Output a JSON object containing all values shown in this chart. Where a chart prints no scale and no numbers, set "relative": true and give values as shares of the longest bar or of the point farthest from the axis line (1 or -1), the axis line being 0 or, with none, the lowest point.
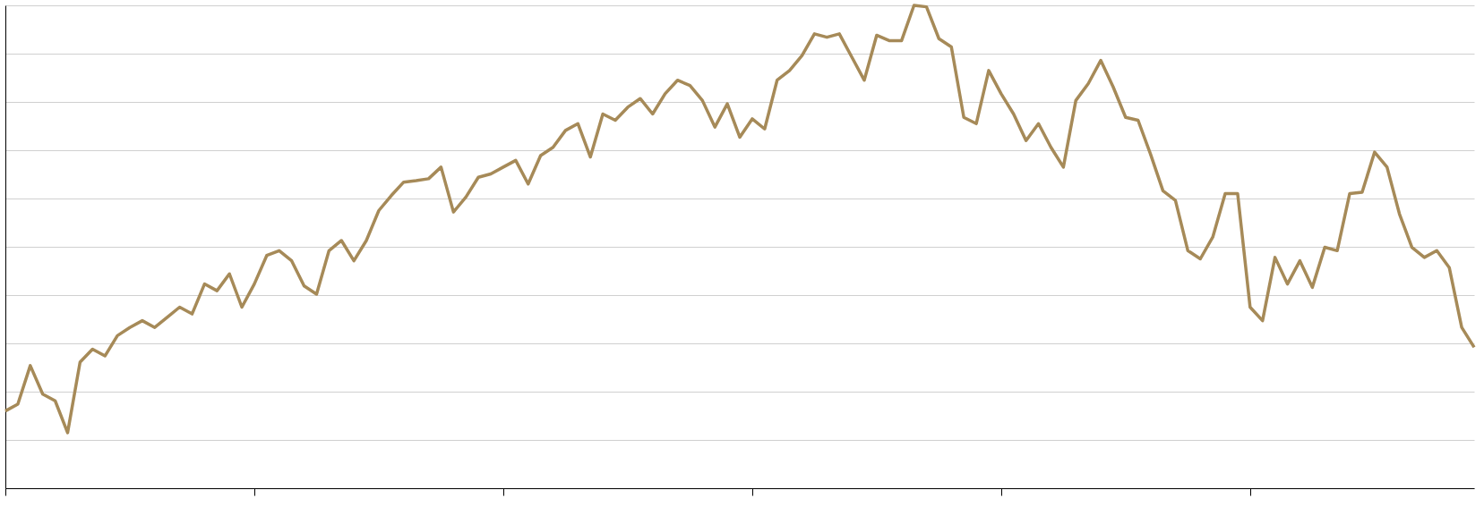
{
  "chart_data": {
    "type": "line",
    "relative": true,
    "grid": "y",
    "line_style": "solid",
    "marker": "none",
    "categories": [
      null,
      null,
      null,
      null,
      null,
      null,
      null,
      null,
      null,
      null,
      null,
      null,
      null,
      null,
      null,
      null,
      null,
      null,
      null,
      null,
      null,
      null,
      null,
      null,
      null,
      null,
      null,
      null,
      null,
      null,
      null,
      null,
      null,
      null,
      null,
      null,
      null,
      null,
      null,
      null,
      null,
      null,
      null,
      null,
      null,
      null,
      null,
      null,
      null,
      null,
      null,
      null,
      null,
      null,
      null,
      null,
      null,
      null,
      null,
      null,
      null,
      null,
      null,
      null,
      null,
      null,
      null,
      null,
      null,
      null,
      null,
      null,
      null,
      null,
      null,
      null,
      null,
      null,
      null,
      null,
      null,
      null,
      null,
      null,
      null,
      null,
      null,
      null,
      null,
      null,
      null,
      null,
      null,
      null,
      null,
      null,
      null,
      null,
      null,
      null,
      null,
      null,
      null,
      null,
      null,
      null,
      null,
      null,
      null,
      null,
      null,
      null,
      null,
      null,
      null,
      null,
      null,
      null,
      null
    ],
    "series": [
      {
        "color": "#a68a58",
        "values": [
          0.16,
          0.174,
          0.254,
          0.195,
          0.181,
          0.115,
          0.261,
          0.288,
          0.274,
          0.316,
          0.333,
          0.347,
          0.333,
          0.354,
          0.375,
          0.361,
          0.423,
          0.409,
          0.444,
          0.375,
          0.423,
          0.482,
          0.492,
          0.471,
          0.419,
          0.402,
          0.492,
          0.513,
          0.471,
          0.513,
          0.575,
          0.606,
          0.634,
          0.637,
          0.641,
          0.665,
          0.572,
          0.603,
          0.644,
          0.651,
          0.665,
          0.679,
          0.63,
          0.689,
          0.706,
          0.741,
          0.755,
          0.686,
          0.775,
          0.762,
          0.789,
          0.807,
          0.775,
          0.817,
          0.845,
          0.834,
          0.803,
          0.748,
          0.796,
          0.727,
          0.765,
          0.744,
          0.845,
          0.865,
          0.896,
          0.941,
          0.934,
          0.941,
          0.893,
          0.845,
          0.938,
          0.927,
          0.927,
          1.0,
          0.997,
          0.931,
          0.914,
          0.768,
          0.755,
          0.865,
          0.817,
          0.775,
          0.72,
          0.755,
          0.706,
          0.665,
          0.803,
          0.838,
          0.886,
          0.831,
          0.768,
          0.762,
          0.692,
          0.616,
          0.596,
          0.492,
          0.475,
          0.52,
          0.61,
          0.61,
          0.375,
          0.347,
          0.478,
          0.423,
          0.471,
          0.416,
          0.499,
          0.492,
          0.61,
          0.613,
          0.696,
          0.665,
          0.568,
          0.499,
          0.478,
          0.492,
          0.457,
          0.333,
          0.292
        ]
      }
    ]
  }
}
